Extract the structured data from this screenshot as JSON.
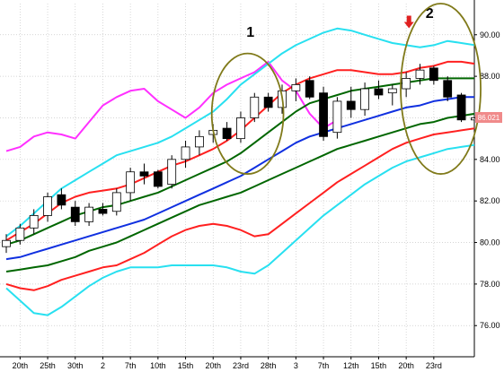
{
  "chart_data": {
    "type": "candlestick",
    "title": "",
    "xlabel": "",
    "ylabel": "",
    "ylim": [
      74.5,
      91.5
    ],
    "grid": true,
    "colors": {
      "background": "#ffffff",
      "grid": "#c8c8c8",
      "up_candle": "#ffffff",
      "down_candle": "#000000",
      "candle_outline": "#000000",
      "price_tag": "#f08a8a",
      "ellipse": "#807a1a",
      "arrow": "#e02020"
    },
    "y_ticks": [
      "76.00",
      "78.00",
      "80.00",
      "82.00",
      "84.00",
      "86.00",
      "88.00",
      "90.00"
    ],
    "y_tick_values": [
      76,
      78,
      80,
      82,
      84,
      86,
      88,
      90
    ],
    "x_tick_labels": [
      "20th",
      "25th",
      "30th",
      "2",
      "7th",
      "10th",
      "15th",
      "20th",
      "23rd",
      "28th",
      "3",
      "7th",
      "12th",
      "15th",
      "20th",
      "23rd"
    ],
    "x_tick_indices": [
      1,
      3,
      5,
      7,
      9,
      11,
      13,
      15,
      17,
      19,
      21,
      23,
      25,
      27,
      29,
      31
    ],
    "last_price_label": "86.021",
    "last_price_value": 86.02,
    "candles": [
      {
        "o": 79.8,
        "h": 80.4,
        "l": 79.5,
        "c": 80.1
      },
      {
        "o": 80.1,
        "h": 80.9,
        "l": 79.9,
        "c": 80.7
      },
      {
        "o": 80.7,
        "h": 81.6,
        "l": 80.4,
        "c": 81.3
      },
      {
        "o": 81.3,
        "h": 82.4,
        "l": 81.0,
        "c": 82.2
      },
      {
        "o": 82.3,
        "h": 82.6,
        "l": 81.6,
        "c": 81.8
      },
      {
        "o": 81.7,
        "h": 82.0,
        "l": 80.8,
        "c": 81.0
      },
      {
        "o": 81.0,
        "h": 81.9,
        "l": 80.8,
        "c": 81.7
      },
      {
        "o": 81.6,
        "h": 81.9,
        "l": 81.3,
        "c": 81.4
      },
      {
        "o": 81.5,
        "h": 82.6,
        "l": 81.3,
        "c": 82.4
      },
      {
        "o": 82.4,
        "h": 83.6,
        "l": 82.0,
        "c": 83.4
      },
      {
        "o": 83.4,
        "h": 83.8,
        "l": 82.8,
        "c": 83.2
      },
      {
        "o": 83.4,
        "h": 83.5,
        "l": 82.6,
        "c": 82.7
      },
      {
        "o": 82.8,
        "h": 84.2,
        "l": 82.6,
        "c": 84.0
      },
      {
        "o": 84.0,
        "h": 84.9,
        "l": 83.6,
        "c": 84.6
      },
      {
        "o": 84.6,
        "h": 85.4,
        "l": 84.2,
        "c": 85.1
      },
      {
        "o": 85.2,
        "h": 85.7,
        "l": 84.8,
        "c": 85.4
      },
      {
        "o": 85.5,
        "h": 85.8,
        "l": 84.9,
        "c": 85.0
      },
      {
        "o": 85.0,
        "h": 86.3,
        "l": 84.8,
        "c": 86.0
      },
      {
        "o": 86.0,
        "h": 87.2,
        "l": 85.8,
        "c": 87.0
      },
      {
        "o": 87.0,
        "h": 87.2,
        "l": 86.3,
        "c": 86.5
      },
      {
        "o": 86.5,
        "h": 87.6,
        "l": 86.2,
        "c": 87.3
      },
      {
        "o": 87.3,
        "h": 87.9,
        "l": 86.8,
        "c": 87.6
      },
      {
        "o": 87.8,
        "h": 88.0,
        "l": 86.9,
        "c": 87.0
      },
      {
        "o": 87.2,
        "h": 87.5,
        "l": 84.9,
        "c": 85.1
      },
      {
        "o": 85.3,
        "h": 87.0,
        "l": 85.0,
        "c": 86.8
      },
      {
        "o": 86.8,
        "h": 87.5,
        "l": 86.0,
        "c": 86.4
      },
      {
        "o": 86.4,
        "h": 87.7,
        "l": 86.1,
        "c": 87.4
      },
      {
        "o": 87.4,
        "h": 87.8,
        "l": 86.9,
        "c": 87.1
      },
      {
        "o": 87.2,
        "h": 87.6,
        "l": 86.6,
        "c": 87.4
      },
      {
        "o": 87.4,
        "h": 88.2,
        "l": 87.0,
        "c": 87.9
      },
      {
        "o": 87.9,
        "h": 88.6,
        "l": 87.6,
        "c": 88.3
      },
      {
        "o": 88.4,
        "h": 88.5,
        "l": 87.6,
        "c": 87.8
      },
      {
        "o": 87.8,
        "h": 88.0,
        "l": 86.8,
        "c": 87.0
      },
      {
        "o": 87.1,
        "h": 87.2,
        "l": 85.8,
        "c": 85.9
      },
      {
        "o": 85.9,
        "h": 86.3,
        "l": 85.7,
        "c": 86.0
      }
    ],
    "series": [
      {
        "color": "#ff30ff",
        "width": 2,
        "start": 0,
        "values": [
          84.4,
          84.6,
          85.1,
          85.3,
          85.2,
          85.0,
          85.8,
          86.6,
          87.0,
          87.3,
          87.4,
          86.8,
          86.4,
          86.0,
          86.5,
          87.2,
          87.6,
          87.9,
          88.2,
          88.7,
          87.8,
          87.3,
          86.2,
          85.5,
          85.9
        ]
      },
      {
        "color": "#28e0f0",
        "width": 2,
        "start": 0,
        "values": [
          80.3,
          80.8,
          81.4,
          82.0,
          82.6,
          83.0,
          83.4,
          83.8,
          84.2,
          84.4,
          84.6,
          84.8,
          85.1,
          85.5,
          85.9,
          86.3,
          86.9,
          87.6,
          88.1,
          88.6,
          89.1,
          89.5,
          89.8,
          90.1,
          90.3,
          90.2,
          90.0,
          89.8,
          89.6,
          89.5,
          89.4,
          89.5,
          89.7,
          89.6,
          89.5
        ]
      },
      {
        "color": "#ff2020",
        "width": 2,
        "start": 0,
        "values": [
          80.1,
          80.5,
          80.9,
          81.4,
          81.9,
          82.2,
          82.4,
          82.5,
          82.6,
          82.8,
          83.1,
          83.4,
          83.7,
          83.9,
          84.2,
          84.5,
          84.9,
          85.4,
          86.0,
          86.6,
          87.2,
          87.6,
          87.9,
          88.1,
          88.3,
          88.3,
          88.2,
          88.1,
          88.1,
          88.2,
          88.4,
          88.5,
          88.7,
          88.7,
          88.6
        ]
      },
      {
        "color": "#006600",
        "width": 2,
        "start": 0,
        "values": [
          79.9,
          80.1,
          80.4,
          80.7,
          81.0,
          81.3,
          81.5,
          81.7,
          81.8,
          82.0,
          82.2,
          82.4,
          82.7,
          83.0,
          83.3,
          83.6,
          83.9,
          84.3,
          84.8,
          85.3,
          85.8,
          86.3,
          86.7,
          86.9,
          87.1,
          87.3,
          87.4,
          87.5,
          87.6,
          87.7,
          87.8,
          87.9,
          87.9,
          87.9,
          87.9
        ]
      },
      {
        "color": "#1030e0",
        "width": 2,
        "start": 0,
        "values": [
          79.2,
          79.3,
          79.5,
          79.7,
          79.9,
          80.1,
          80.3,
          80.5,
          80.7,
          80.9,
          81.1,
          81.4,
          81.7,
          82.0,
          82.3,
          82.6,
          82.9,
          83.2,
          83.6,
          84.0,
          84.4,
          84.8,
          85.1,
          85.3,
          85.5,
          85.7,
          85.9,
          86.1,
          86.3,
          86.5,
          86.6,
          86.8,
          86.9,
          87.0,
          87.0
        ]
      },
      {
        "color": "#006600",
        "width": 2,
        "start": 0,
        "values": [
          78.6,
          78.7,
          78.8,
          78.9,
          79.1,
          79.3,
          79.6,
          79.8,
          80.0,
          80.3,
          80.6,
          80.9,
          81.2,
          81.5,
          81.8,
          82.0,
          82.2,
          82.4,
          82.7,
          83.0,
          83.3,
          83.6,
          83.9,
          84.2,
          84.5,
          84.7,
          84.9,
          85.1,
          85.3,
          85.5,
          85.7,
          85.8,
          86.0,
          86.1,
          86.2
        ]
      },
      {
        "color": "#ff2020",
        "width": 2,
        "start": 0,
        "values": [
          78.0,
          77.8,
          77.7,
          77.9,
          78.2,
          78.4,
          78.6,
          78.8,
          78.9,
          79.2,
          79.5,
          79.9,
          80.3,
          80.6,
          80.8,
          80.9,
          80.8,
          80.6,
          80.3,
          80.4,
          80.9,
          81.4,
          81.9,
          82.4,
          82.9,
          83.3,
          83.7,
          84.1,
          84.5,
          84.8,
          85.0,
          85.2,
          85.3,
          85.4,
          85.5
        ]
      },
      {
        "color": "#28e0f0",
        "width": 2,
        "start": 0,
        "values": [
          77.8,
          77.2,
          76.6,
          76.5,
          76.9,
          77.4,
          77.9,
          78.3,
          78.6,
          78.8,
          78.8,
          78.8,
          78.9,
          78.9,
          78.9,
          78.9,
          78.8,
          78.6,
          78.5,
          78.9,
          79.5,
          80.1,
          80.7,
          81.3,
          81.8,
          82.3,
          82.8,
          83.2,
          83.6,
          83.9,
          84.1,
          84.3,
          84.5,
          84.6,
          84.7
        ]
      }
    ],
    "annotations": [
      {
        "type": "label",
        "text": "1",
        "i": 17.7,
        "v": 89.9
      },
      {
        "type": "label",
        "text": "2",
        "i": 30.7,
        "v": 90.8
      },
      {
        "type": "ellipse",
        "ci": 17.5,
        "cv": 86.2,
        "ri": 2.6,
        "rv": 2.9
      },
      {
        "type": "ellipse",
        "ci": 31.5,
        "cv": 87.4,
        "ri": 2.9,
        "rv": 4.1
      },
      {
        "type": "arrow",
        "i": 29.2,
        "v": 90.4
      }
    ]
  }
}
